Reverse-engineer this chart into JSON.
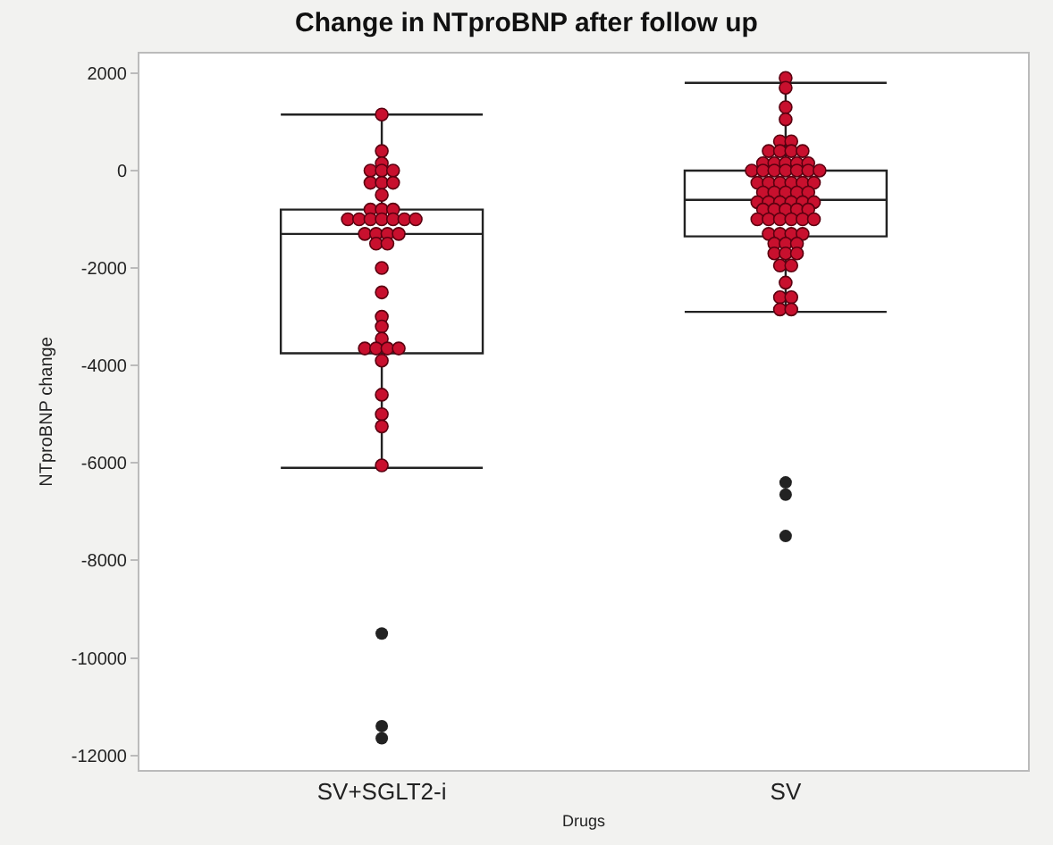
{
  "chart_data": {
    "type": "box",
    "title": "Change in NTproBNP after follow up",
    "xlabel": "Drugs",
    "ylabel": "NTproBNP change",
    "categories": [
      "SV+SGLT2-i",
      "SV"
    ],
    "ylim": [
      -12300,
      2400
    ],
    "yticks": [
      2000,
      0,
      -2000,
      -4000,
      -6000,
      -8000,
      -10000,
      -12000
    ],
    "grid": false,
    "marker": "circle",
    "series": [
      {
        "color": "#222222",
        "boxes": [
          {
            "low": -6100,
            "q1": -3750,
            "median": -1300,
            "q3": -800,
            "high": 1150,
            "outliers": [
              -9500,
              -11400,
              -11650
            ]
          },
          {
            "low": -2900,
            "q1": -1350,
            "median": -600,
            "q3": 0,
            "high": 1800,
            "outliers": [
              -6400,
              -6650,
              -7500
            ]
          }
        ]
      },
      {
        "type": "scatter",
        "color": "#c8102e",
        "x": [
          "SV+SGLT2-i",
          "SV+SGLT2-i",
          "SV+SGLT2-i",
          "SV+SGLT2-i",
          "SV+SGLT2-i",
          "SV+SGLT2-i",
          "SV+SGLT2-i",
          "SV+SGLT2-i",
          "SV+SGLT2-i",
          "SV+SGLT2-i",
          "SV+SGLT2-i",
          "SV+SGLT2-i",
          "SV+SGLT2-i",
          "SV+SGLT2-i",
          "SV+SGLT2-i",
          "SV+SGLT2-i",
          "SV+SGLT2-i",
          "SV+SGLT2-i",
          "SV+SGLT2-i",
          "SV+SGLT2-i",
          "SV+SGLT2-i",
          "SV+SGLT2-i",
          "SV+SGLT2-i",
          "SV+SGLT2-i",
          "SV+SGLT2-i",
          "SV+SGLT2-i",
          "SV+SGLT2-i",
          "SV+SGLT2-i",
          "SV+SGLT2-i",
          "SV+SGLT2-i",
          "SV+SGLT2-i",
          "SV+SGLT2-i",
          "SV+SGLT2-i",
          "SV+SGLT2-i",
          "SV+SGLT2-i",
          "SV+SGLT2-i",
          "SV+SGLT2-i",
          "SV+SGLT2-i",
          "SV+SGLT2-i",
          "SV+SGLT2-i",
          "SV",
          "SV",
          "SV",
          "SV",
          "SV",
          "SV",
          "SV",
          "SV",
          "SV",
          "SV",
          "SV",
          "SV",
          "SV",
          "SV",
          "SV",
          "SV",
          "SV",
          "SV",
          "SV",
          "SV",
          "SV",
          "SV",
          "SV",
          "SV",
          "SV",
          "SV",
          "SV",
          "SV",
          "SV",
          "SV",
          "SV",
          "SV",
          "SV",
          "SV",
          "SV",
          "SV",
          "SV",
          "SV",
          "SV",
          "SV",
          "SV",
          "SV",
          "SV",
          "SV",
          "SV",
          "SV",
          "SV",
          "SV",
          "SV",
          "SV",
          "SV",
          "SV",
          "SV",
          "SV",
          "SV",
          "SV",
          "SV",
          "SV",
          "SV",
          "SV",
          "SV",
          "SV",
          "SV",
          "SV",
          "SV",
          "SV",
          "SV"
        ],
        "values": [
          1150,
          400,
          150,
          0,
          0,
          0,
          -250,
          -250,
          -250,
          -500,
          -800,
          -800,
          -800,
          -1000,
          -1000,
          -1000,
          -1000,
          -1000,
          -1000,
          -1000,
          -1300,
          -1300,
          -1300,
          -1300,
          -1500,
          -1500,
          -2000,
          -2500,
          -3000,
          -3200,
          -3450,
          -3650,
          -3650,
          -3650,
          -3650,
          -3900,
          -4600,
          -5000,
          -5250,
          -6050,
          1900,
          1700,
          1300,
          1050,
          600,
          600,
          400,
          400,
          400,
          400,
          150,
          150,
          150,
          150,
          150,
          0,
          0,
          0,
          0,
          0,
          0,
          0,
          -250,
          -250,
          -250,
          -250,
          -250,
          -250,
          -450,
          -450,
          -450,
          -450,
          -450,
          -650,
          -650,
          -650,
          -650,
          -650,
          -650,
          -800,
          -800,
          -800,
          -800,
          -800,
          -1000,
          -1000,
          -1000,
          -1000,
          -1000,
          -1000,
          -1300,
          -1300,
          -1300,
          -1300,
          -1500,
          -1500,
          -1500,
          -1700,
          -1700,
          -1700,
          -1950,
          -1950,
          -2300,
          -2600,
          -2600,
          -2850,
          -2850
        ]
      }
    ]
  }
}
